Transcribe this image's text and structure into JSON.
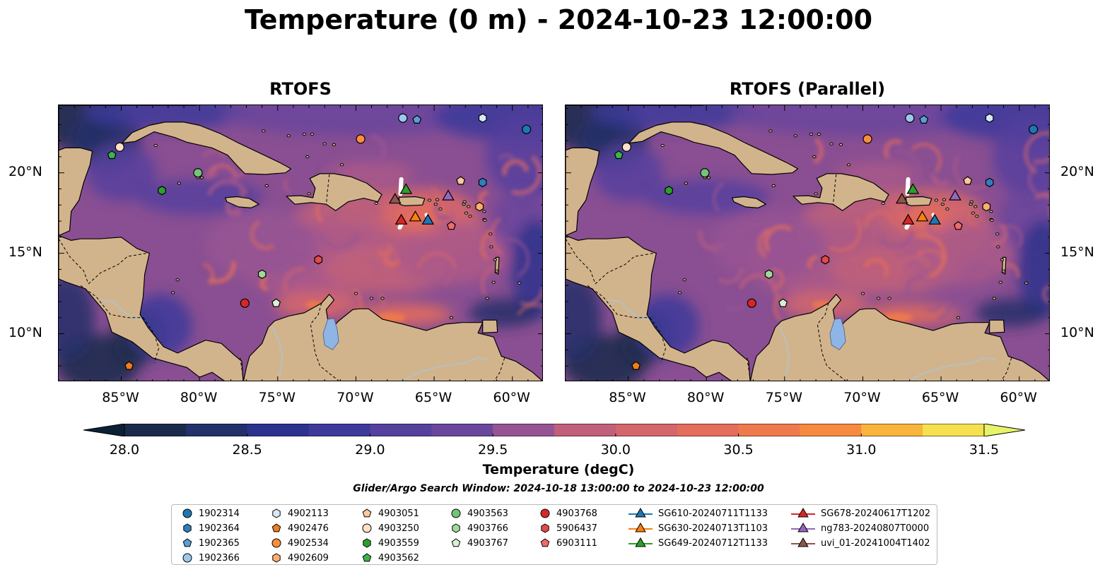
{
  "title": "Temperature (0 m) - 2024-10-23 12:00:00",
  "maps": [
    {
      "id": "rtofs",
      "title": "RTOFS"
    },
    {
      "id": "parallel",
      "title": "RTOFS (Parallel)"
    }
  ],
  "axes": {
    "lon_ticks": [
      "85°W",
      "80°W",
      "75°W",
      "70°W",
      "65°W",
      "60°W"
    ],
    "lat_ticks": [
      "20°N",
      "15°N",
      "10°N"
    ],
    "extent": {
      "lon_min": -89,
      "lon_max": -58,
      "lat_min": 7,
      "lat_max": 24.2
    }
  },
  "colorbar": {
    "label": "Temperature (degC)",
    "ticks": [
      "28.0",
      "28.5",
      "29.0",
      "29.5",
      "30.0",
      "30.5",
      "31.0",
      "31.5"
    ],
    "range": [
      28.0,
      31.5
    ],
    "colors": [
      "#1a2a4a",
      "#23306a",
      "#2d338c",
      "#3d3a9a",
      "#55409e",
      "#6a479c",
      "#7f4e98",
      "#965494",
      "#ac5a88",
      "#c0607a",
      "#d4676c",
      "#e46d5c",
      "#ef7a4c",
      "#f68a40",
      "#f99d3a",
      "#f9b43c",
      "#f6cb45",
      "#f5e04f"
    ],
    "under_color": "#0b2033",
    "over_color": "#e7f46a"
  },
  "colors": {
    "land": "#d2b48c",
    "lake": "#8fb5e6",
    "river": "#a9c5d9",
    "ocean_base": "#8a4f92"
  },
  "search_window": "Glider/Argo Search Window: 2024-10-18 13:00:00 to 2024-10-23 12:00:00",
  "legend": [
    {
      "label": "1902314",
      "marker": "circle",
      "color": "#1f77b4"
    },
    {
      "label": "1902364",
      "marker": "hexagon",
      "color": "#2f7fbf"
    },
    {
      "label": "1902365",
      "marker": "pentagon",
      "color": "#5a9fd6"
    },
    {
      "label": "1902366",
      "marker": "circle",
      "color": "#9cc8ec"
    },
    {
      "label": "4902113",
      "marker": "hexagon",
      "color": "#d6e9f8"
    },
    {
      "label": "4902476",
      "marker": "pentagon",
      "color": "#f07c1c"
    },
    {
      "label": "4902534",
      "marker": "circle",
      "color": "#fd8d3c"
    },
    {
      "label": "4902609",
      "marker": "hexagon",
      "color": "#fdae6b"
    },
    {
      "label": "4903051",
      "marker": "pentagon",
      "color": "#fdc99a"
    },
    {
      "label": "4903250",
      "marker": "circle",
      "color": "#fde0c5"
    },
    {
      "label": "4903559",
      "marker": "hexagon",
      "color": "#2ca02c"
    },
    {
      "label": "4903562",
      "marker": "pentagon",
      "color": "#3cb44b"
    },
    {
      "label": "4903563",
      "marker": "circle",
      "color": "#74c476"
    },
    {
      "label": "4903766",
      "marker": "hexagon",
      "color": "#a1d99b"
    },
    {
      "label": "4903767",
      "marker": "pentagon",
      "color": "#d9f0d3"
    },
    {
      "label": "4903768",
      "marker": "circle",
      "color": "#d62728"
    },
    {
      "label": "5906437",
      "marker": "hexagon",
      "color": "#e34a4a"
    },
    {
      "label": "6903111",
      "marker": "pentagon",
      "color": "#ef6b6b"
    },
    {
      "label": "SG610-20240711T1133",
      "marker": "triangle",
      "color": "#1f77b4"
    },
    {
      "label": "SG630-20240713T1103",
      "marker": "triangle",
      "color": "#ff7f0e"
    },
    {
      "label": "SG649-20240712T1133",
      "marker": "triangle",
      "color": "#2ca02c"
    },
    {
      "label": "SG678-20240617T1202",
      "marker": "triangle",
      "color": "#d62728"
    },
    {
      "label": "ng783-20240807T0000",
      "marker": "triangle",
      "color": "#9467bd"
    },
    {
      "label": "uvi_01-20241004T1402",
      "marker": "triangle",
      "color": "#8c564b"
    }
  ],
  "platforms": [
    {
      "id": "1902314",
      "lon": -59.1,
      "lat": 22.7
    },
    {
      "id": "1902364",
      "lon": -61.9,
      "lat": 19.4
    },
    {
      "id": "1902365",
      "lon": -66.1,
      "lat": 23.3
    },
    {
      "id": "1902366",
      "lon": -67.0,
      "lat": 23.4
    },
    {
      "id": "4902113",
      "lon": -61.9,
      "lat": 23.4
    },
    {
      "id": "4902476",
      "lon": -84.5,
      "lat": 8.0
    },
    {
      "id": "4902534",
      "lon": -69.7,
      "lat": 22.1
    },
    {
      "id": "4902609",
      "lon": -62.1,
      "lat": 17.9
    },
    {
      "id": "4903051",
      "lon": -63.3,
      "lat": 19.5
    },
    {
      "id": "4903250",
      "lon": -85.1,
      "lat": 21.6
    },
    {
      "id": "4903559",
      "lon": -82.4,
      "lat": 18.9
    },
    {
      "id": "4903562",
      "lon": -85.6,
      "lat": 21.1
    },
    {
      "id": "4903563",
      "lon": -80.1,
      "lat": 20.0
    },
    {
      "id": "4903766",
      "lon": -76.0,
      "lat": 13.7
    },
    {
      "id": "4903767",
      "lon": -75.1,
      "lat": 11.9
    },
    {
      "id": "4903768",
      "lon": -77.1,
      "lat": 11.9
    },
    {
      "id": "5906437",
      "lon": -72.4,
      "lat": 14.6
    },
    {
      "id": "6903111",
      "lon": -63.9,
      "lat": 16.7
    },
    {
      "id": "SG610-20240711T1133",
      "lon": -65.4,
      "lat": 17.1
    },
    {
      "id": "SG630-20240713T1103",
      "lon": -66.2,
      "lat": 17.3
    },
    {
      "id": "SG649-20240712T1133",
      "lon": -66.8,
      "lat": 19.0
    },
    {
      "id": "SG678-20240617T1202",
      "lon": -67.1,
      "lat": 17.1
    },
    {
      "id": "ng783-20240807T0000",
      "lon": -64.1,
      "lat": 18.6
    },
    {
      "id": "uvi_01-20241004T1402",
      "lon": -67.5,
      "lat": 18.4
    }
  ]
}
